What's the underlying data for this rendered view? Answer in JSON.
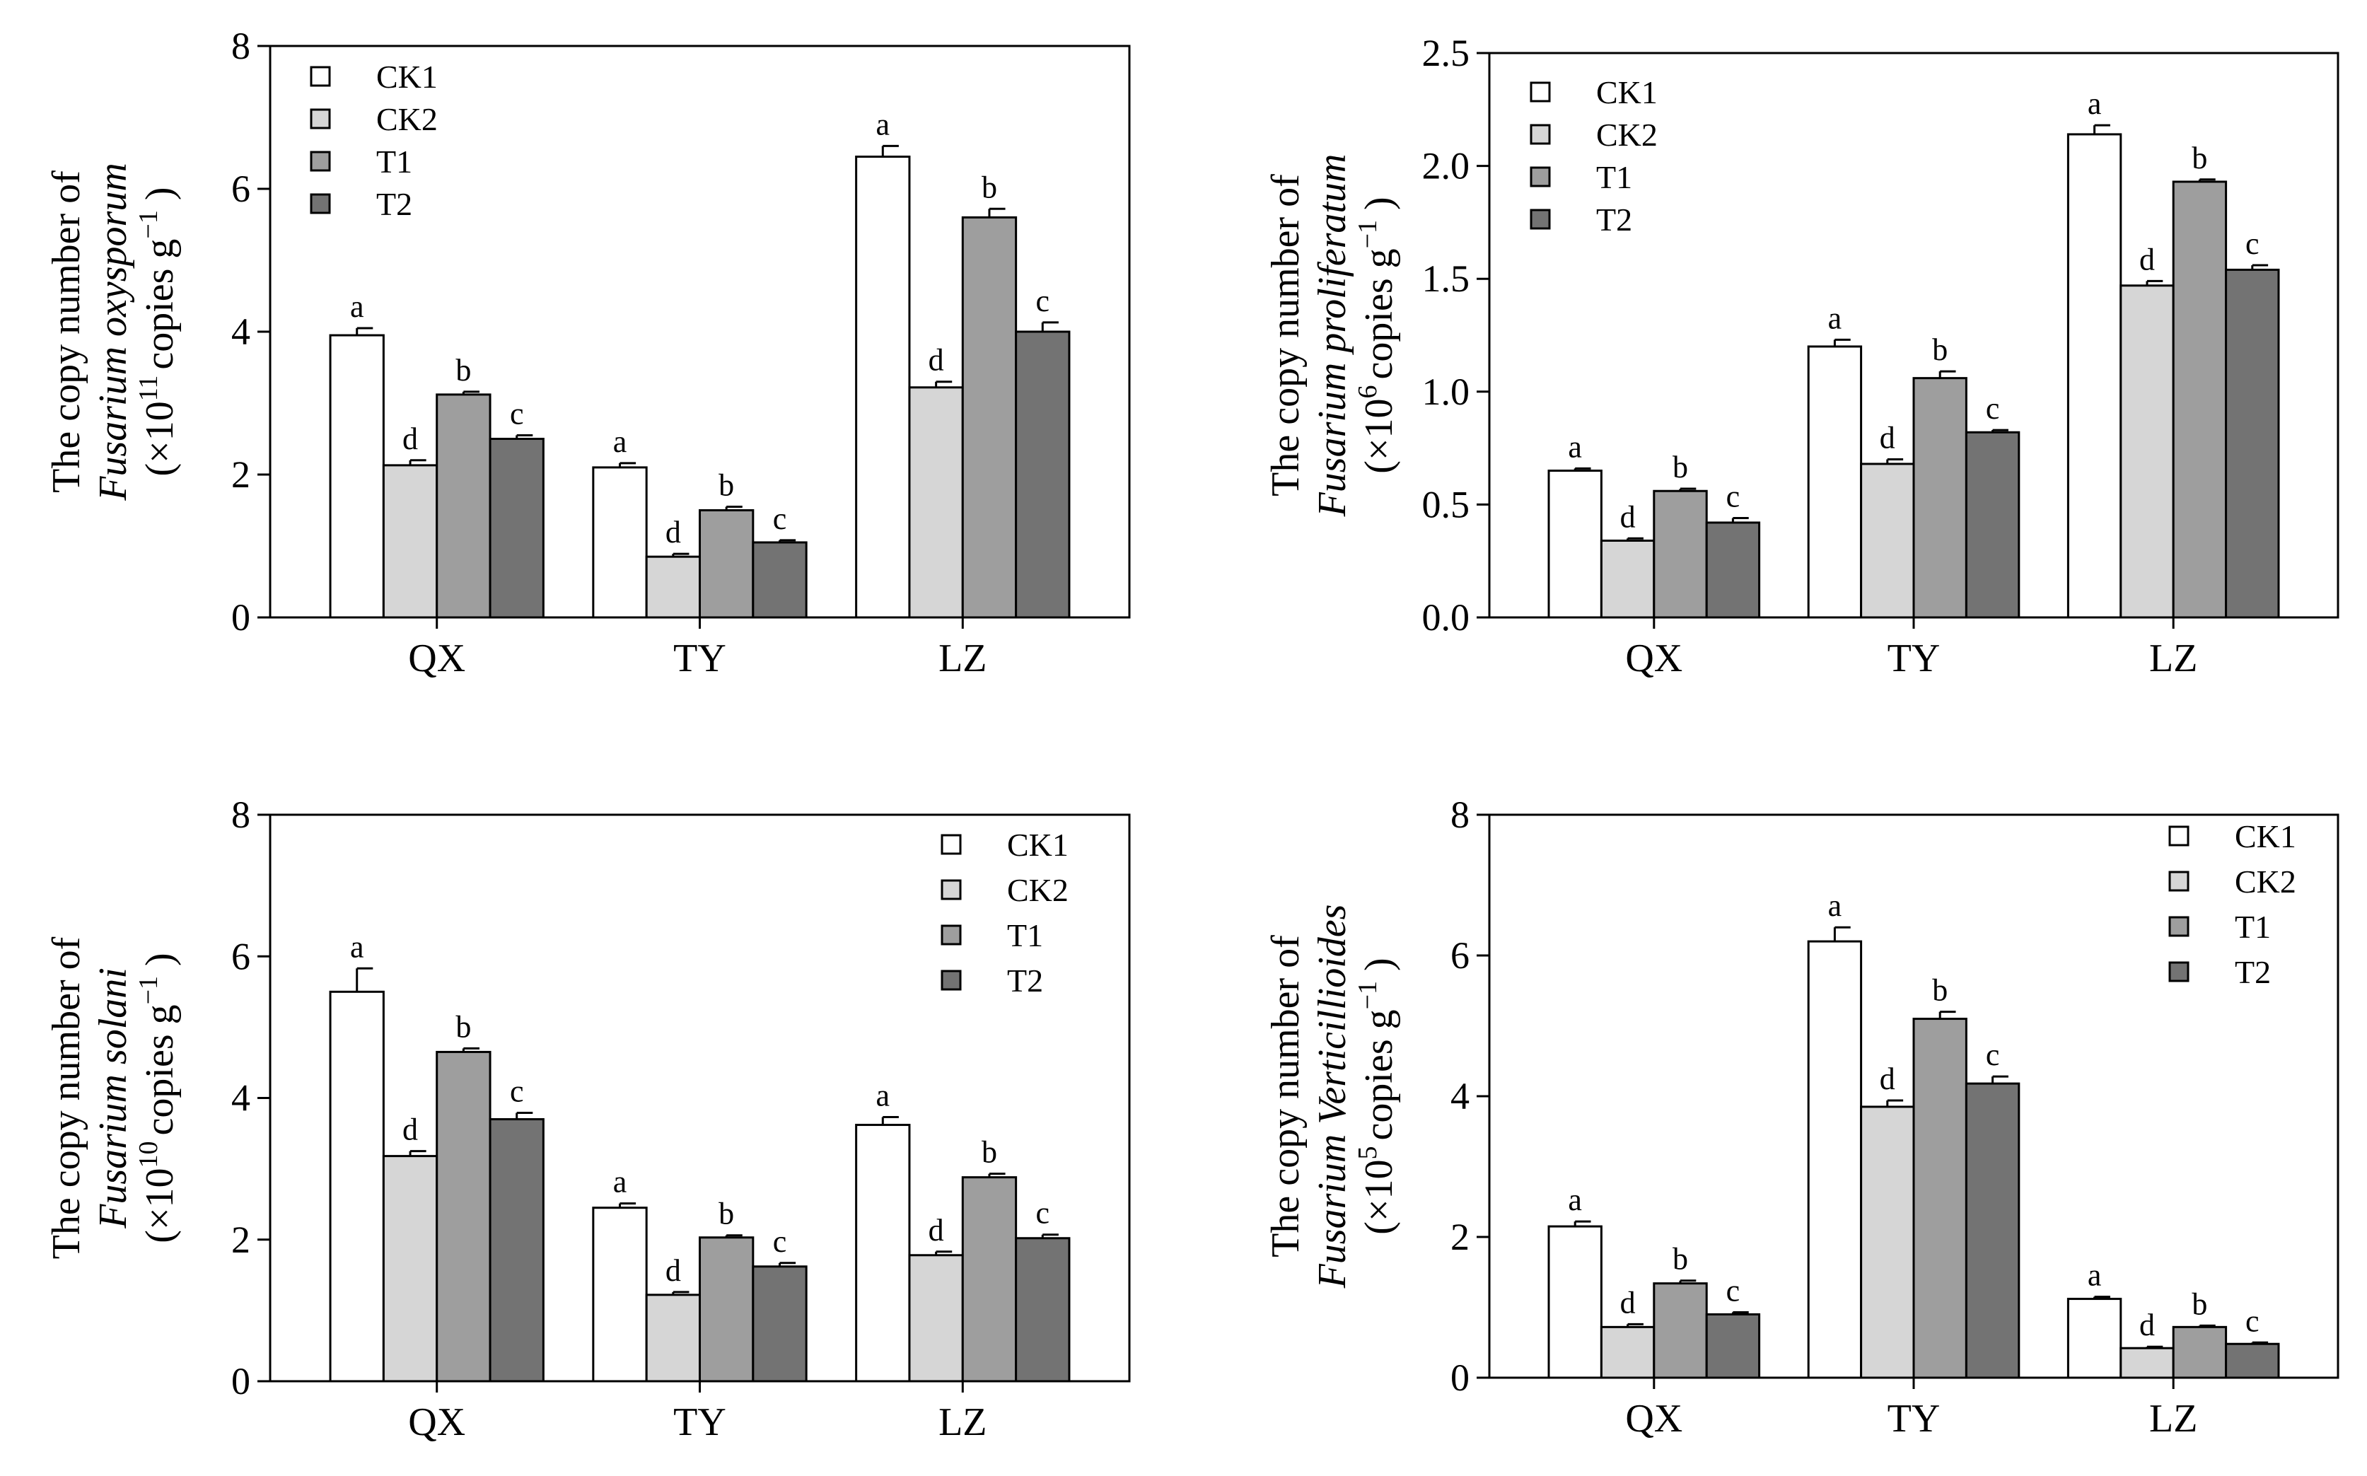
{
  "series_styles": [
    {
      "name": "CK1",
      "color": "#ffffff"
    },
    {
      "name": "CK2",
      "color": "#d6d6d6"
    },
    {
      "name": "T1",
      "color": "#9e9e9e"
    },
    {
      "name": "T2",
      "color": "#737373"
    }
  ],
  "chart_data": [
    {
      "type": "bar",
      "title": "",
      "categories": [
        "QX",
        "TY",
        "LZ"
      ],
      "legend": [
        "CK1",
        "CK2",
        "T1",
        "T2"
      ],
      "legend_position": "top-left",
      "ylabel": {
        "line1": "The copy number of",
        "line2": "Fusarium oxysporum",
        "line3_pre": "(×10",
        "exp": "11",
        "line3_mid": "copies g",
        "exp2": "−1",
        "line3_post": ")"
      },
      "ylim": [
        0,
        8
      ],
      "yticks": [
        "0",
        "2",
        "4",
        "6",
        "8"
      ],
      "tick_values": [
        0,
        2,
        4,
        6,
        8
      ],
      "series": [
        {
          "name": "CK1",
          "values": [
            3.95,
            2.1,
            6.45
          ],
          "errors": [
            0.1,
            0.06,
            0.15
          ],
          "letters": [
            "a",
            "a",
            "a"
          ]
        },
        {
          "name": "CK2",
          "values": [
            2.13,
            0.85,
            3.22
          ],
          "errors": [
            0.07,
            0.04,
            0.08
          ],
          "letters": [
            "d",
            "d",
            "d"
          ]
        },
        {
          "name": "T1",
          "values": [
            3.12,
            1.5,
            5.6
          ],
          "errors": [
            0.04,
            0.05,
            0.12
          ],
          "letters": [
            "b",
            "b",
            "b"
          ]
        },
        {
          "name": "T2",
          "values": [
            2.5,
            1.05,
            4.0
          ],
          "errors": [
            0.05,
            0.03,
            0.13
          ],
          "letters": [
            "c",
            "c",
            "c"
          ]
        }
      ]
    },
    {
      "type": "bar",
      "title": "",
      "categories": [
        "QX",
        "TY",
        "LZ"
      ],
      "legend": [
        "CK1",
        "CK2",
        "T1",
        "T2"
      ],
      "legend_position": "top-left",
      "ylabel": {
        "line1": "The copy number of",
        "line2": "Fusarium proliferatum",
        "line3_pre": "(×10",
        "exp": "6",
        "line3_mid": "copies g",
        "exp2": "−1",
        "line3_post": ")"
      },
      "ylim": [
        0,
        2.5
      ],
      "yticks": [
        "0.0",
        "0.5",
        "1.0",
        "1.5",
        "2.0",
        "2.5"
      ],
      "tick_values": [
        0,
        0.5,
        1.0,
        1.5,
        2.0,
        2.5
      ],
      "series": [
        {
          "name": "CK1",
          "values": [
            0.65,
            1.2,
            2.14
          ],
          "errors": [
            0.01,
            0.03,
            0.04
          ],
          "letters": [
            "a",
            "a",
            "a"
          ]
        },
        {
          "name": "CK2",
          "values": [
            0.34,
            0.68,
            1.47
          ],
          "errors": [
            0.01,
            0.02,
            0.02
          ],
          "letters": [
            "d",
            "d",
            "d"
          ]
        },
        {
          "name": "T1",
          "values": [
            0.56,
            1.06,
            1.93
          ],
          "errors": [
            0.01,
            0.03,
            0.01
          ],
          "letters": [
            "b",
            "b",
            "b"
          ]
        },
        {
          "name": "T2",
          "values": [
            0.42,
            0.82,
            1.54
          ],
          "errors": [
            0.02,
            0.01,
            0.02
          ],
          "letters": [
            "c",
            "c",
            "c"
          ]
        }
      ]
    },
    {
      "type": "bar",
      "title": "",
      "categories": [
        "QX",
        "TY",
        "LZ"
      ],
      "legend": [
        "CK1",
        "CK2",
        "T1",
        "T2"
      ],
      "legend_position": "top-right",
      "ylabel": {
        "line1": "The copy number of",
        "line2": "Fusarium solani",
        "line3_pre": "(×10",
        "exp": "10",
        "line3_mid": "copies g",
        "exp2": "−1",
        "line3_post": ")"
      },
      "ylim": [
        0,
        8
      ],
      "yticks": [
        "0",
        "2",
        "4",
        "6",
        "8"
      ],
      "tick_values": [
        0,
        2,
        4,
        6,
        8
      ],
      "series": [
        {
          "name": "CK1",
          "values": [
            5.5,
            2.45,
            3.62
          ],
          "errors": [
            0.33,
            0.06,
            0.11
          ],
          "letters": [
            "a",
            "a",
            "a"
          ]
        },
        {
          "name": "CK2",
          "values": [
            3.18,
            1.22,
            1.78
          ],
          "errors": [
            0.07,
            0.04,
            0.05
          ],
          "letters": [
            "d",
            "d",
            "d"
          ]
        },
        {
          "name": "T1",
          "values": [
            4.65,
            2.03,
            2.88
          ],
          "errors": [
            0.05,
            0.03,
            0.05
          ],
          "letters": [
            "b",
            "b",
            "b"
          ]
        },
        {
          "name": "T2",
          "values": [
            3.7,
            1.62,
            2.02
          ],
          "errors": [
            0.09,
            0.05,
            0.05
          ],
          "letters": [
            "c",
            "c",
            "c"
          ]
        }
      ]
    },
    {
      "type": "bar",
      "title": "",
      "categories": [
        "QX",
        "TY",
        "LZ"
      ],
      "legend": [
        "CK1",
        "CK2",
        "T1",
        "T2"
      ],
      "legend_position": "top-right",
      "ylabel": {
        "line1": "The copy number of",
        "line2": "Fusarium Verticillioides",
        "line3_pre": "(×10",
        "exp": "5",
        "line3_mid": "copies g",
        "exp2": "−1",
        "line3_post": ")"
      },
      "ylim": [
        0,
        8
      ],
      "yticks": [
        "0",
        "2",
        "4",
        "6",
        "8"
      ],
      "tick_values": [
        0,
        2,
        4,
        6,
        8
      ],
      "series": [
        {
          "name": "CK1",
          "values": [
            2.15,
            6.2,
            1.12
          ],
          "errors": [
            0.07,
            0.2,
            0.03
          ],
          "letters": [
            "a",
            "a",
            "a"
          ]
        },
        {
          "name": "CK2",
          "values": [
            0.72,
            3.85,
            0.42
          ],
          "errors": [
            0.04,
            0.09,
            0.02
          ],
          "letters": [
            "d",
            "d",
            "d"
          ]
        },
        {
          "name": "T1",
          "values": [
            1.34,
            5.1,
            0.72
          ],
          "errors": [
            0.04,
            0.1,
            0.02
          ],
          "letters": [
            "b",
            "b",
            "b"
          ]
        },
        {
          "name": "T2",
          "values": [
            0.9,
            4.18,
            0.48
          ],
          "errors": [
            0.03,
            0.1,
            0.02
          ],
          "letters": [
            "c",
            "c",
            "c"
          ]
        }
      ]
    }
  ]
}
